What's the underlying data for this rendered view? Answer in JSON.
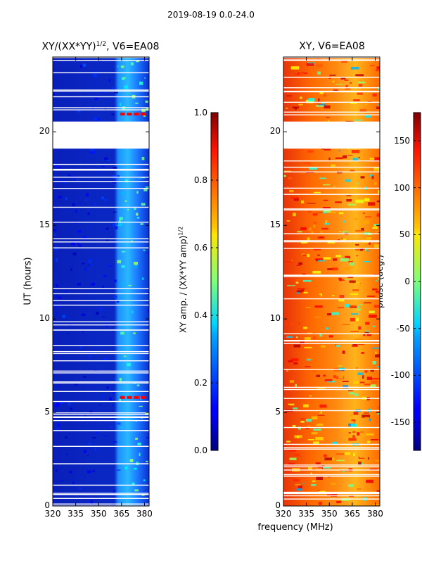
{
  "figure": {
    "suptitle": "2019-08-19 0.0-24.0",
    "xlabel": "frequency (MHz)"
  },
  "chart_data": [
    {
      "type": "heatmap",
      "title_prefix": "XY/(XX*YY)",
      "title_exp": "1/2",
      "title_suffix": ", V6=EA08",
      "xlabel": "frequency (MHz)",
      "ylabel": "UT (hours)",
      "xlim": [
        320,
        383
      ],
      "ylim": [
        0,
        24
      ],
      "xticks": [
        320,
        335,
        350,
        365,
        380
      ],
      "yticks": [
        0,
        5,
        10,
        15,
        20
      ],
      "colormap": "jet",
      "colorbar": {
        "label_prefix": "XY amp. / (XX*YY amp)",
        "label_exp": "1/2",
        "range": [
          0.0,
          1.0
        ],
        "ticks": [
          "0.0",
          "0.2",
          "0.4",
          "0.6",
          "0.8",
          "1.0"
        ]
      },
      "flagged_ut_ranges": [
        [
          19.1,
          20.55
        ]
      ],
      "notes": "mostly low amplitude (~0.1); elevated ~0.3-0.5 in 362-380 MHz band; near-1.0 spikes at ~5.8 h and ~20.9 h"
    },
    {
      "type": "heatmap",
      "title": "XY, V6=EA08",
      "xlabel": "frequency (MHz)",
      "ylabel": "",
      "xlim": [
        320,
        383
      ],
      "ylim": [
        0,
        24
      ],
      "xticks": [
        320,
        335,
        350,
        365,
        380
      ],
      "yticks": [
        0,
        5,
        10,
        15,
        20
      ],
      "colormap": "jet",
      "colorbar": {
        "label": "phase (deg.)",
        "range": [
          -180,
          180
        ],
        "ticks": [
          "-150",
          "-100",
          "-50",
          "0",
          "50",
          "100",
          "150"
        ]
      },
      "flagged_ut_ranges": [
        [
          19.1,
          20.55
        ]
      ],
      "notes": "phase mostly ~100-160 deg (orange/red) with scattered noisy regions near -100 to 50 deg"
    }
  ]
}
